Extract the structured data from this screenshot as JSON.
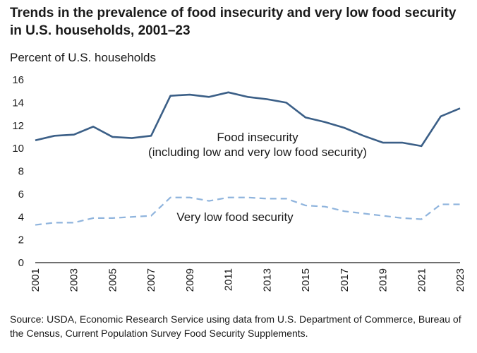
{
  "chart_data": {
    "type": "line",
    "title": "Trends in the prevalence of food insecurity and very low food security in U.S. households, 2001–23",
    "ylabel": "Percent of U.S. households",
    "xlabel": "",
    "x": [
      2001,
      2002,
      2003,
      2004,
      2005,
      2006,
      2007,
      2008,
      2009,
      2010,
      2011,
      2012,
      2013,
      2014,
      2015,
      2016,
      2017,
      2018,
      2019,
      2020,
      2021,
      2022,
      2023
    ],
    "xticks": [
      "2001",
      "2003",
      "2005",
      "2007",
      "2009",
      "2011",
      "2013",
      "2015",
      "2017",
      "2019",
      "2021",
      "2023"
    ],
    "ylim": [
      0,
      16
    ],
    "yticks": [
      "0",
      "2",
      "4",
      "6",
      "8",
      "10",
      "12",
      "14",
      "16"
    ],
    "grid": false,
    "series": [
      {
        "name": "Food insecurity",
        "annotation_lines": [
          "Food insecurity",
          "(including low and very low food security)"
        ],
        "style": "solid",
        "color": "#3b5f87",
        "values": [
          10.7,
          11.1,
          11.2,
          11.9,
          11.0,
          10.9,
          11.1,
          14.6,
          14.7,
          14.5,
          14.9,
          14.5,
          14.3,
          14.0,
          12.7,
          12.3,
          11.8,
          11.1,
          10.5,
          10.5,
          10.2,
          12.8,
          13.5
        ]
      },
      {
        "name": "Very low food security",
        "annotation_lines": [
          "Very low food security"
        ],
        "style": "dashed",
        "color": "#8fb4dd",
        "values": [
          3.3,
          3.5,
          3.5,
          3.9,
          3.9,
          4.0,
          4.1,
          5.7,
          5.7,
          5.4,
          5.7,
          5.7,
          5.6,
          5.6,
          5.0,
          4.9,
          4.5,
          4.3,
          4.1,
          3.9,
          3.8,
          5.1,
          5.1
        ]
      }
    ]
  },
  "source": "Source: USDA, Economic Research Service using data from U.S. Department of Commerce, Bureau of the Census, Current Population Survey Food Security Supplements."
}
